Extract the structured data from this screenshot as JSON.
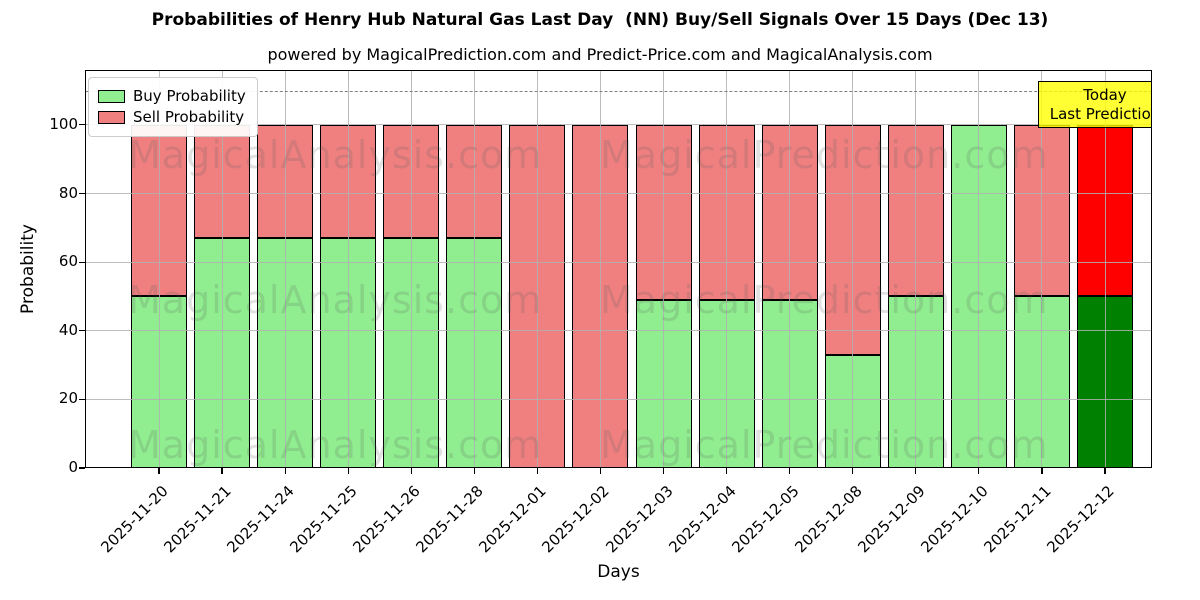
{
  "watermarks": {
    "left": "MagicalAnalysis.com",
    "right": "MagicalPrediction.com"
  },
  "today_box": {
    "line1": "Today",
    "line2": "Last Prediction",
    "bg_color": "#FFFF00"
  },
  "chart_data": {
    "type": "bar",
    "stacked": true,
    "title": "Probabilities of Henry Hub Natural Gas Last Day  (NN) Buy/Sell Signals Over 15 Days (Dec 13)",
    "subtitle": "powered by MagicalPrediction.com and Predict-Price.com and MagicalAnalysis.com",
    "xlabel": "Days",
    "ylabel": "Probability",
    "categories": [
      "2025-11-20",
      "2025-11-21",
      "2025-11-24",
      "2025-11-25",
      "2025-11-26",
      "2025-11-28",
      "2025-12-01",
      "2025-12-02",
      "2025-12-03",
      "2025-12-04",
      "2025-12-05",
      "2025-12-08",
      "2025-12-09",
      "2025-12-10",
      "2025-12-11",
      "2025-12-12"
    ],
    "series": [
      {
        "name": "Buy Probability",
        "color": "#90EE90",
        "values": [
          50,
          67,
          67,
          67,
          67,
          67,
          0,
          0,
          49,
          49,
          49,
          33,
          50,
          100,
          50,
          50
        ]
      },
      {
        "name": "Sell Probability",
        "color": "#F08080",
        "values": [
          50,
          33,
          33,
          33,
          33,
          33,
          100,
          100,
          51,
          51,
          51,
          67,
          50,
          0,
          50,
          50
        ]
      }
    ],
    "highlight_last": {
      "category": "2025-12-12",
      "buy_color": "#008000",
      "sell_color": "#FF0000"
    },
    "yticks": [
      0,
      20,
      40,
      60,
      80,
      100
    ],
    "ylim": [
      0,
      116
    ],
    "dashed_line_y": 110,
    "grid": "on",
    "legend_position": "upper left",
    "bar_edge_color": "#000000",
    "grid_color": "#b0b0b0"
  }
}
